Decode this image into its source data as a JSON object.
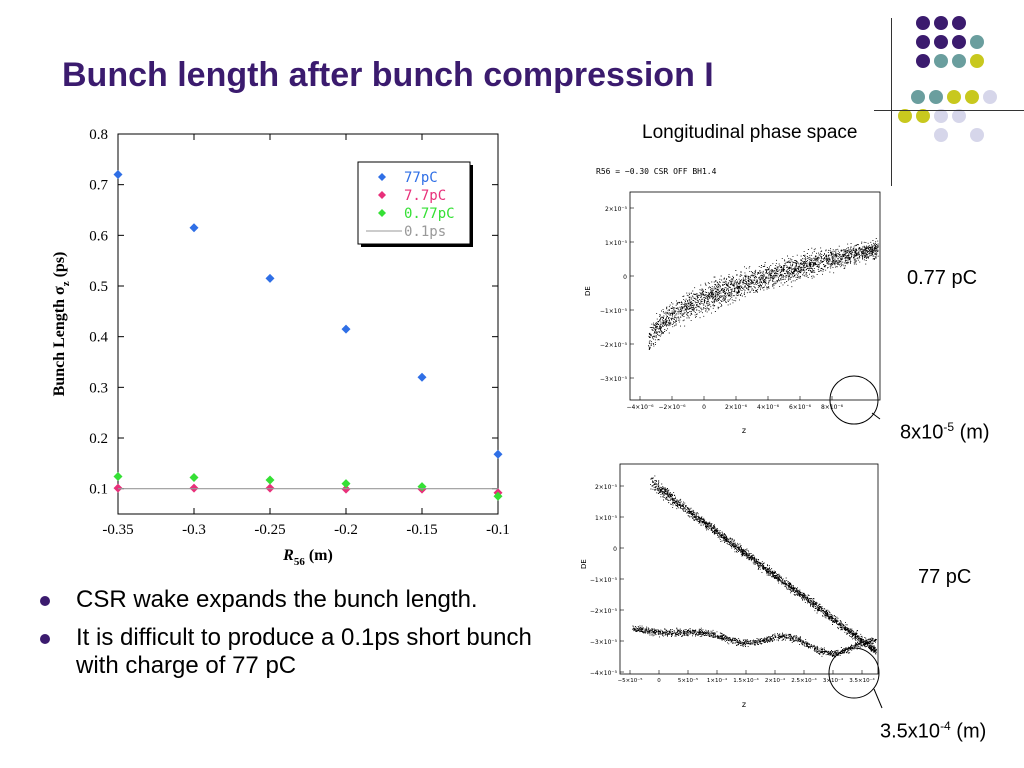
{
  "slide": {
    "title": "Bunch length after bunch compression I",
    "bullets": [
      "CSR wake expands the bunch length.",
      "It is difficult to produce a 0.1ps short bunch with charge of 77 pC"
    ],
    "phase_space_title": "Longitudinal phase space",
    "labels": {
      "top_charge": "0.77 pC",
      "bottom_charge": "77 pC",
      "top_size_base": "8x10",
      "top_size_exp": "-5",
      "top_size_unit": " (m)",
      "bottom_size_base": "3.5x10",
      "bottom_size_exp": "-4",
      "bottom_size_unit": " (m)"
    },
    "decor_colors": {
      "purple": "#3b1b6e",
      "teal": "#6a9e9e",
      "yellow": "#c8c81e",
      "lavender": "#d6d6ea"
    }
  },
  "phase_plots": {
    "top": {
      "header": "R56 = −0.30 CSR OFF BH1.4",
      "ylabel": "DE",
      "xlabel": "z",
      "yticks": [
        "2×10⁻⁵",
        "1×10⁻⁵",
        "0",
        "−1×10⁻⁵",
        "−2×10⁻⁵",
        "−3×10⁻⁵"
      ],
      "xticks": [
        "−4×10⁻⁶",
        "−2×10⁻⁶",
        "0",
        "2×10⁻⁶",
        "4×10⁻⁶",
        "6×10⁻⁶",
        "8×10⁻⁶"
      ]
    },
    "bottom": {
      "ylabel": "DE",
      "xlabel": "z",
      "yticks": [
        "2×10⁻⁵",
        "1×10⁻⁵",
        "0",
        "−1×10⁻⁵",
        "−2×10⁻⁵",
        "−3×10⁻⁵",
        "−4×10⁻⁵"
      ],
      "xticks": [
        "−5×10⁻⁵",
        "0",
        "5×10⁻⁵",
        "1×10⁻⁴",
        "1.5×10⁻⁴",
        "2×10⁻⁴",
        "2.5×10⁻⁴",
        "3×10⁻⁴",
        "3.5×10⁻⁴"
      ]
    }
  },
  "chart_data": {
    "type": "scatter",
    "xlabel": "R",
    "xlabel_sub": "56",
    "xlabel_unit": " (m)",
    "ylabel": "Bunch Length σ",
    "ylabel_sub": "z",
    "ylabel_unit": " (ps)",
    "xlim": [
      -0.35,
      -0.1
    ],
    "ylim": [
      0.05,
      0.8
    ],
    "xticks": [
      -0.35,
      -0.3,
      -0.25,
      -0.2,
      -0.15,
      -0.1
    ],
    "xtick_labels": [
      "-0.35",
      "-0.3",
      "-0.25",
      "-0.2",
      "-0.15",
      "-0.1"
    ],
    "yticks": [
      0.1,
      0.2,
      0.3,
      0.4,
      0.5,
      0.6,
      0.7,
      0.8
    ],
    "ytick_labels": [
      "0.1",
      "0.2",
      "0.3",
      "0.4",
      "0.5",
      "0.6",
      "0.7",
      "0.8"
    ],
    "legend_position": "top-right",
    "series": [
      {
        "name": "77pC",
        "color": "#2f6fe6",
        "marker": "diamond",
        "x": [
          -0.35,
          -0.3,
          -0.25,
          -0.2,
          -0.15,
          -0.1
        ],
        "y": [
          0.72,
          0.615,
          0.515,
          0.415,
          0.32,
          0.168
        ]
      },
      {
        "name": "7.7pC",
        "color": "#e8307a",
        "marker": "diamond",
        "x": [
          -0.35,
          -0.3,
          -0.25,
          -0.2,
          -0.15,
          -0.1
        ],
        "y": [
          0.101,
          0.101,
          0.101,
          0.099,
          0.099,
          0.092
        ]
      },
      {
        "name": "0.77pC",
        "color": "#35e035",
        "marker": "diamond",
        "x": [
          -0.35,
          -0.3,
          -0.25,
          -0.2,
          -0.15,
          -0.1
        ],
        "y": [
          0.124,
          0.122,
          0.117,
          0.11,
          0.104,
          0.085
        ]
      },
      {
        "name": "0.1ps",
        "color": "#999999",
        "marker": "line",
        "x": [
          -0.35,
          -0.1
        ],
        "y": [
          0.1,
          0.1
        ]
      }
    ]
  }
}
